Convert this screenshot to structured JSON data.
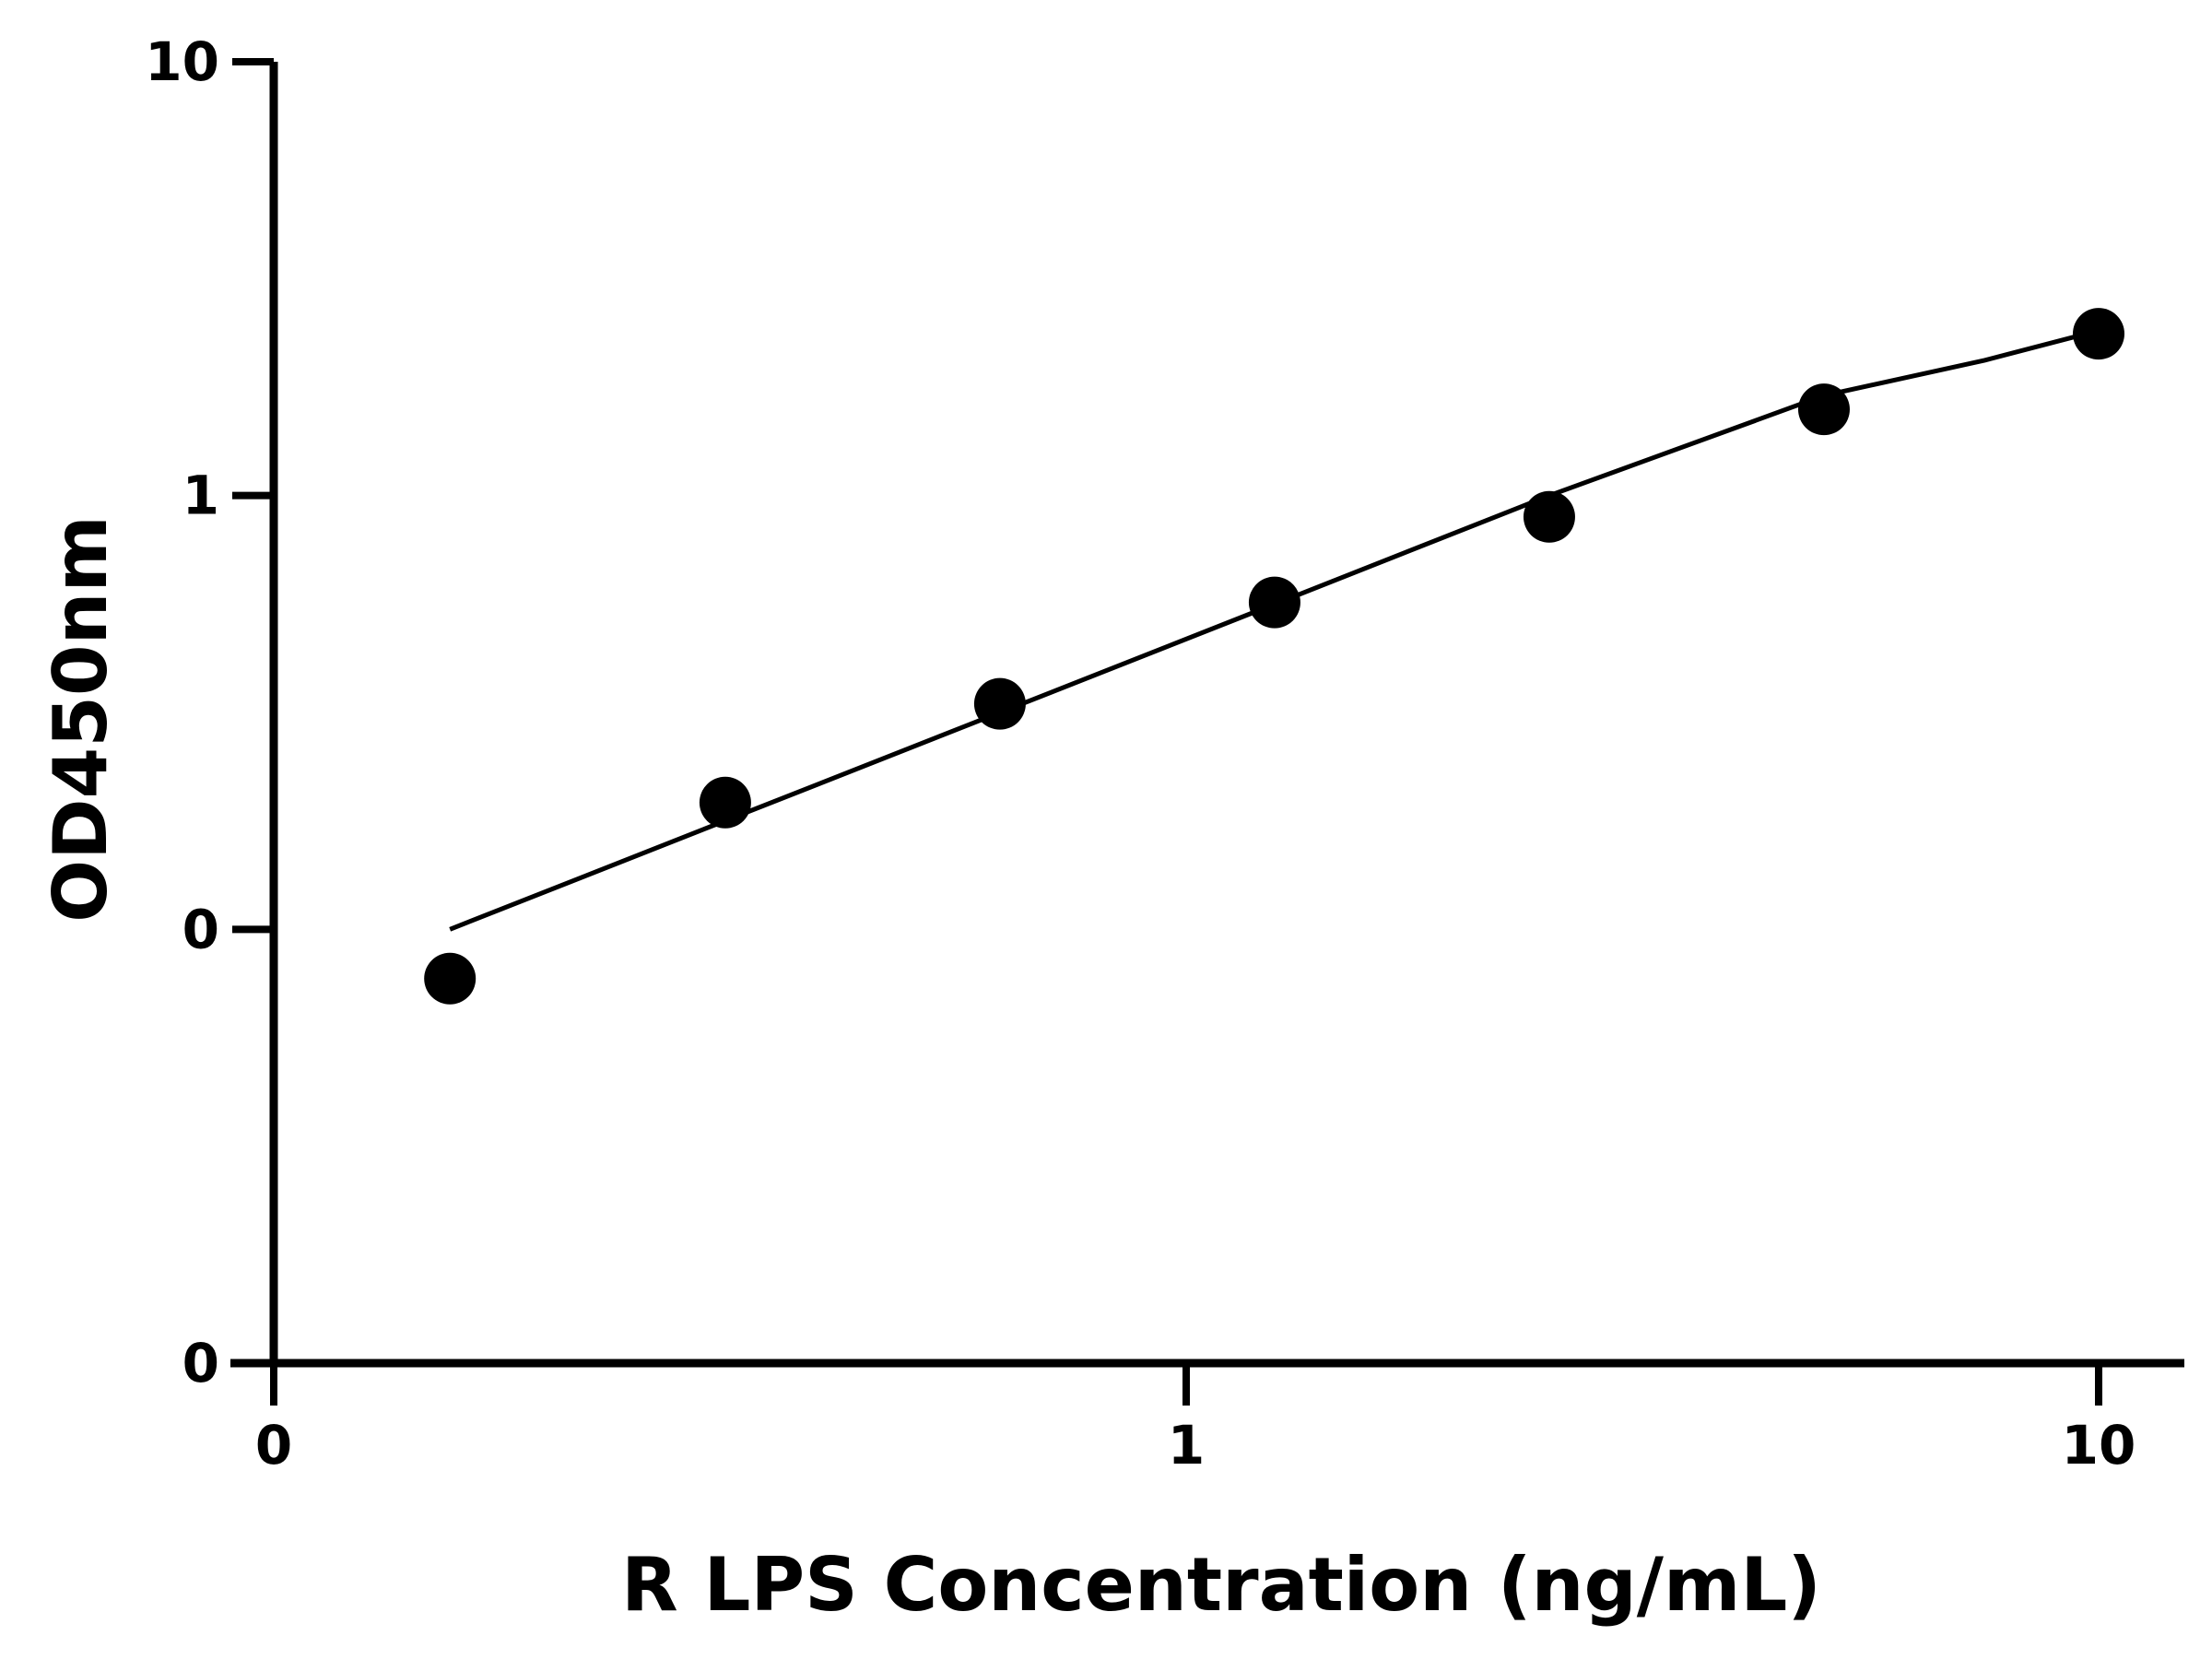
{
  "chart_data": {
    "type": "scatter",
    "title": "",
    "xlabel": "R LPS Concentration (ng/mL)",
    "ylabel": "OD450nm",
    "x_scale": "log",
    "y_scale": "log",
    "xlim": [
      0.1,
      13
    ],
    "ylim": [
      0.01,
      10
    ],
    "x_ticks": [
      {
        "value": 0.1,
        "label": "0"
      },
      {
        "value": 1,
        "label": "1"
      },
      {
        "value": 10,
        "label": "10"
      }
    ],
    "y_ticks": [
      {
        "value": 0.01,
        "label": "0"
      },
      {
        "value": 0.1,
        "label": "0"
      },
      {
        "value": 1,
        "label": "1"
      },
      {
        "value": 10,
        "label": "10"
      }
    ],
    "series": [
      {
        "x": [
          0.156,
          0.3125,
          0.625,
          1.25,
          2.5,
          5,
          10
        ],
        "y": [
          0.077,
          0.196,
          0.331,
          0.567,
          0.893,
          1.58,
          2.36
        ]
      }
    ],
    "fit_curve": {
      "x": [
        0.156,
        0.3125,
        0.625,
        1.25,
        2.5,
        5,
        7.5,
        10
      ],
      "y": [
        0.1,
        0.178,
        0.316,
        0.562,
        1.0,
        1.7,
        2.05,
        2.4
      ]
    },
    "grid": false,
    "legend": "none",
    "colors": {
      "marker": "#000000",
      "line": "#000000",
      "axis": "#000000"
    }
  }
}
